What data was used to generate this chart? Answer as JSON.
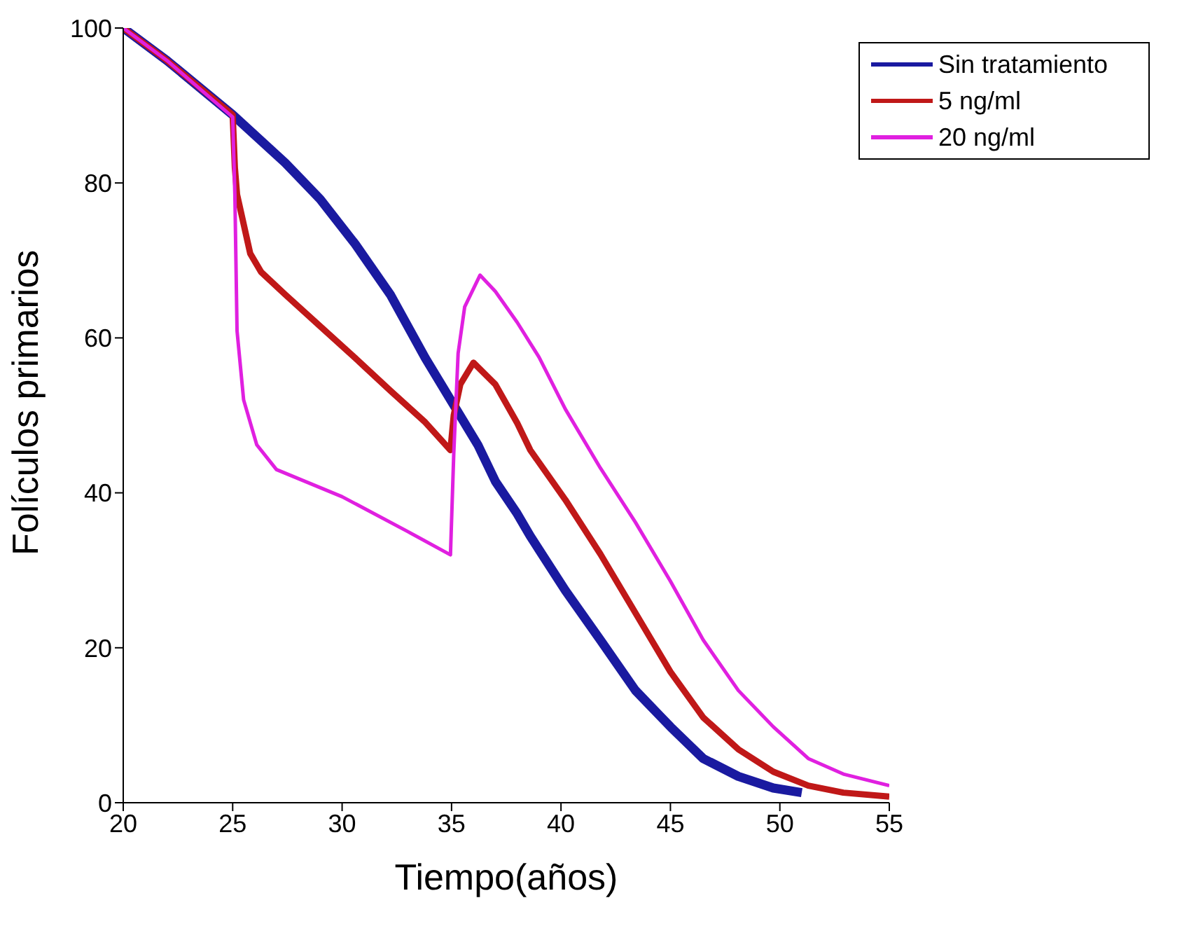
{
  "chart_data": {
    "type": "line",
    "xlabel": "Tiempo(años)",
    "ylabel": "Folículos primarios",
    "xlim": [
      20,
      55
    ],
    "xticks": [
      20,
      25,
      30,
      35,
      40,
      45,
      50,
      55
    ],
    "ylim": [
      0,
      100
    ],
    "yticks": [
      0,
      20,
      40,
      60,
      80,
      100
    ],
    "grid": false,
    "legend": "top right",
    "line_style": "solid",
    "marker": "none",
    "series": [
      {
        "name": "Sin tratamiento",
        "color": "#1a1aa0",
        "x": [
          20,
          22,
          25,
          27.4,
          29,
          30.6,
          32.2,
          33.8,
          35,
          36.2,
          37,
          38,
          38.6,
          40.2,
          41.8,
          43.4,
          45,
          46.5,
          48.1,
          49.7,
          51
        ],
        "values": [
          100,
          95.8,
          88.8,
          82.6,
          77.9,
          72.1,
          65.6,
          57.4,
          51.8,
          46.2,
          41.5,
          37.3,
          34.4,
          27.4,
          21,
          14.5,
          9.8,
          5.7,
          3.4,
          1.9,
          1.3
        ]
      },
      {
        "name": "5 ng/ml",
        "color": "#c01818",
        "x": [
          20,
          22,
          25,
          25.1,
          25.2,
          25.8,
          26.3,
          27.4,
          29,
          30.6,
          32.2,
          33.8,
          34.95,
          35.1,
          35.4,
          36,
          37,
          38,
          38.6,
          40.2,
          41.8,
          43.4,
          45,
          46.5,
          48.1,
          49.7,
          51.3,
          52.9,
          55
        ],
        "values": [
          100,
          95.8,
          88.8,
          82,
          78.5,
          70.9,
          68.5,
          65.6,
          61.5,
          57.4,
          53.2,
          49.1,
          45.5,
          50,
          54,
          56.8,
          54,
          49,
          45.5,
          39.1,
          32.1,
          24.5,
          16.9,
          11,
          6.9,
          4,
          2.2,
          1.3,
          0.8
        ]
      },
      {
        "name": "20 ng/ml",
        "color": "#e020e0",
        "x": [
          20,
          22,
          25,
          25.1,
          25.2,
          25.5,
          26.1,
          27,
          30,
          33,
          34.95,
          35.1,
          35.3,
          35.6,
          36.3,
          37,
          38,
          39,
          40.2,
          41.8,
          43.4,
          45,
          46.5,
          48.1,
          49.7,
          51.3,
          52.9,
          55
        ],
        "values": [
          100,
          95.8,
          88.5,
          78.5,
          60.9,
          52,
          46.2,
          43,
          39.5,
          35,
          32,
          45,
          58,
          64,
          68.1,
          66,
          62,
          57.5,
          50.8,
          43.2,
          36.2,
          28.6,
          21,
          14.5,
          9.8,
          5.7,
          3.7,
          2.2
        ]
      }
    ]
  }
}
